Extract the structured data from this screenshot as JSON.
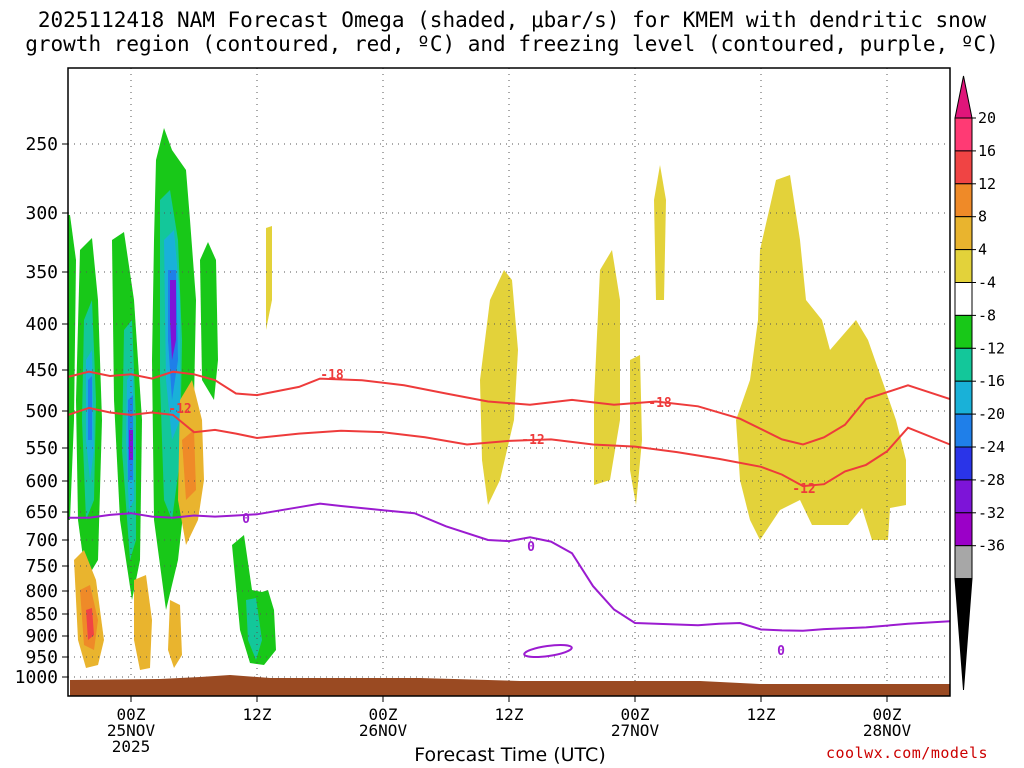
{
  "chart_data": {
    "type": "heatmap",
    "title_line1": "2025112418 NAM Forecast Omega (shaded, μbar/s) for KMEM with dendritic snow",
    "title_line2": "growth region (contoured, red, ºC) and freezing level (contoured, purple, ºC)",
    "xlabel": "Forecast Time (UTC)",
    "ylabel": "",
    "y_ticks": [
      250,
      300,
      350,
      400,
      450,
      500,
      550,
      600,
      650,
      700,
      750,
      800,
      850,
      900,
      950,
      1000
    ],
    "ylim_hpa": [
      1020,
      200
    ],
    "x_ticks": [
      {
        "hour": 6,
        "label": "00Z",
        "date": "25NOV",
        "year": "2025"
      },
      {
        "hour": 18,
        "label": "12Z",
        "date": "",
        "year": ""
      },
      {
        "hour": 30,
        "label": "00Z",
        "date": "26NOV",
        "year": ""
      },
      {
        "hour": 42,
        "label": "12Z",
        "date": "",
        "year": ""
      },
      {
        "hour": 54,
        "label": "00Z",
        "date": "27NOV",
        "year": ""
      },
      {
        "hour": 66,
        "label": "12Z",
        "date": "",
        "year": ""
      },
      {
        "hour": 78,
        "label": "00Z",
        "date": "28NOV",
        "year": ""
      }
    ],
    "xlim_hours": [
      0,
      84
    ],
    "grid": true,
    "colorbar": {
      "levels": [
        "20",
        "16",
        "12",
        "8",
        "4",
        "-4",
        "-8",
        "-12",
        "-16",
        "-20",
        "-24",
        "-28",
        "-32",
        "-36"
      ],
      "colors": [
        "#ff3a74",
        "#f04444",
        "#ef8a28",
        "#e9b42e",
        "#e3d23a",
        "#ffffff",
        "#18c818",
        "#13c79a",
        "#19b1d8",
        "#1f7fe9",
        "#2a34e8",
        "#7d14d8",
        "#9b00c8",
        "#a7a7a7"
      ],
      "top_cap_color": "#e0157a",
      "bottom_cap_color": "#000000"
    },
    "contours": [
      {
        "label": "-18",
        "color": "#ee3b3b",
        "points": [
          [
            0,
            458
          ],
          [
            2,
            452
          ],
          [
            4,
            457
          ],
          [
            6,
            455
          ],
          [
            8,
            460
          ],
          [
            10,
            452
          ],
          [
            12,
            455
          ],
          [
            14,
            462
          ],
          [
            16,
            478
          ],
          [
            18,
            480
          ],
          [
            20,
            475
          ],
          [
            22,
            470
          ],
          [
            24,
            460
          ],
          [
            28,
            462
          ],
          [
            32,
            468
          ],
          [
            36,
            478
          ],
          [
            40,
            488
          ],
          [
            44,
            492
          ],
          [
            48,
            486
          ],
          [
            52,
            492
          ],
          [
            56,
            488
          ],
          [
            60,
            494
          ],
          [
            64,
            510
          ],
          [
            68,
            538
          ],
          [
            70,
            545
          ],
          [
            72,
            535
          ],
          [
            74,
            518
          ],
          [
            76,
            485
          ],
          [
            80,
            468
          ],
          [
            84,
            485
          ]
        ]
      },
      {
        "label": "-12",
        "color": "#ee3b3b",
        "points": [
          [
            0,
            505
          ],
          [
            2,
            496
          ],
          [
            4,
            502
          ],
          [
            6,
            505
          ],
          [
            8,
            502
          ],
          [
            10,
            505
          ],
          [
            12,
            528
          ],
          [
            14,
            525
          ],
          [
            16,
            530
          ],
          [
            18,
            536
          ],
          [
            22,
            530
          ],
          [
            26,
            526
          ],
          [
            30,
            528
          ],
          [
            34,
            535
          ],
          [
            38,
            545
          ],
          [
            42,
            540
          ],
          [
            46,
            538
          ],
          [
            50,
            545
          ],
          [
            54,
            548
          ],
          [
            58,
            556
          ],
          [
            62,
            566
          ],
          [
            66,
            578
          ],
          [
            68,
            590
          ],
          [
            70,
            608
          ],
          [
            72,
            605
          ],
          [
            74,
            585
          ],
          [
            76,
            575
          ],
          [
            78,
            555
          ],
          [
            80,
            522
          ],
          [
            84,
            545
          ]
        ]
      },
      {
        "label": "0",
        "color": "#9b1bd0",
        "points": [
          [
            0,
            660
          ],
          [
            2,
            660
          ],
          [
            4,
            655
          ],
          [
            6,
            652
          ],
          [
            8,
            658
          ],
          [
            10,
            660
          ],
          [
            12,
            656
          ],
          [
            14,
            658
          ],
          [
            16,
            656
          ],
          [
            18,
            654
          ],
          [
            22,
            642
          ],
          [
            24,
            636
          ],
          [
            26,
            640
          ],
          [
            30,
            647
          ],
          [
            33,
            652
          ],
          [
            36,
            675
          ],
          [
            40,
            700
          ],
          [
            42,
            702
          ],
          [
            44,
            695
          ],
          [
            46,
            703
          ],
          [
            48,
            725
          ],
          [
            50,
            790
          ],
          [
            52,
            840
          ],
          [
            54,
            870
          ],
          [
            56,
            872
          ],
          [
            60,
            875
          ],
          [
            62,
            872
          ],
          [
            64,
            870
          ],
          [
            66,
            885
          ],
          [
            68,
            887
          ],
          [
            70,
            888
          ],
          [
            72,
            884
          ],
          [
            76,
            880
          ],
          [
            80,
            872
          ],
          [
            84,
            866
          ]
        ]
      }
    ],
    "contour_labels": [
      {
        "text": "-18",
        "color": "#ee3b3b"
      },
      {
        "text": "-12",
        "color": "#ee3b3b"
      },
      {
        "text": "-18",
        "color": "#ee3b3b"
      },
      {
        "text": "-12",
        "color": "#ee3b3b"
      },
      {
        "text": "-12",
        "color": "#ee3b3b"
      },
      {
        "text": "0",
        "color": "#9b1bd0"
      },
      {
        "text": "0",
        "color": "#9b1bd0"
      },
      {
        "text": "0",
        "color": "#9b1bd0"
      }
    ]
  },
  "footer": {
    "credit": "coolwx.com/models"
  }
}
